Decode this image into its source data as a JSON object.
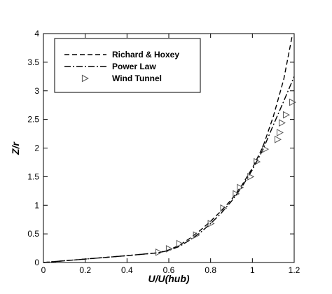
{
  "chart_data": {
    "type": "line",
    "xlabel": "U/U(hub)",
    "ylabel": "Z/r",
    "xlim": [
      0,
      1.2
    ],
    "ylim": [
      0,
      4
    ],
    "xticks": [
      "0",
      "0.2",
      "0.4",
      "0.6",
      "0.8",
      "1",
      "1.2"
    ],
    "yticks": [
      "0",
      "0.5",
      "1",
      "1.5",
      "2",
      "2.5",
      "3",
      "3.5",
      "4"
    ],
    "grid": false,
    "legend_position": "top-left",
    "series": [
      {
        "name": "Richard & Hoxey",
        "style": "dashed",
        "points": [
          [
            0,
            0
          ],
          [
            0.2,
            0.06
          ],
          [
            0.4,
            0.12
          ],
          [
            0.55,
            0.17
          ],
          [
            0.6,
            0.22
          ],
          [
            0.65,
            0.3
          ],
          [
            0.7,
            0.42
          ],
          [
            0.75,
            0.56
          ],
          [
            0.8,
            0.72
          ],
          [
            0.85,
            0.9
          ],
          [
            0.9,
            1.1
          ],
          [
            0.95,
            1.35
          ],
          [
            1.0,
            1.65
          ],
          [
            1.05,
            2.02
          ],
          [
            1.1,
            2.55
          ],
          [
            1.15,
            3.2
          ],
          [
            1.19,
            3.95
          ]
        ]
      },
      {
        "name": "Power Law",
        "style": "dash-dot",
        "points": [
          [
            0,
            0
          ],
          [
            0.2,
            0.06
          ],
          [
            0.4,
            0.12
          ],
          [
            0.55,
            0.17
          ],
          [
            0.6,
            0.21
          ],
          [
            0.65,
            0.28
          ],
          [
            0.7,
            0.39
          ],
          [
            0.75,
            0.52
          ],
          [
            0.8,
            0.68
          ],
          [
            0.85,
            0.86
          ],
          [
            0.9,
            1.07
          ],
          [
            0.95,
            1.32
          ],
          [
            1.0,
            1.62
          ],
          [
            1.05,
            1.97
          ],
          [
            1.1,
            2.4
          ],
          [
            1.15,
            2.82
          ],
          [
            1.2,
            3.25
          ]
        ]
      },
      {
        "name": "Wind Tunnel",
        "style": "marker",
        "marker": "triangle-right",
        "points": [
          [
            0.55,
            0.18
          ],
          [
            0.6,
            0.24
          ],
          [
            0.65,
            0.33
          ],
          [
            0.73,
            0.48
          ],
          [
            0.8,
            0.68
          ],
          [
            0.86,
            0.95
          ],
          [
            0.92,
            1.2
          ],
          [
            0.94,
            1.31
          ],
          [
            0.99,
            1.5
          ],
          [
            1.02,
            1.76
          ],
          [
            1.06,
            1.98
          ],
          [
            1.12,
            2.15
          ],
          [
            1.13,
            2.27
          ],
          [
            1.14,
            2.44
          ],
          [
            1.16,
            2.58
          ],
          [
            1.19,
            2.8
          ]
        ]
      }
    ]
  }
}
